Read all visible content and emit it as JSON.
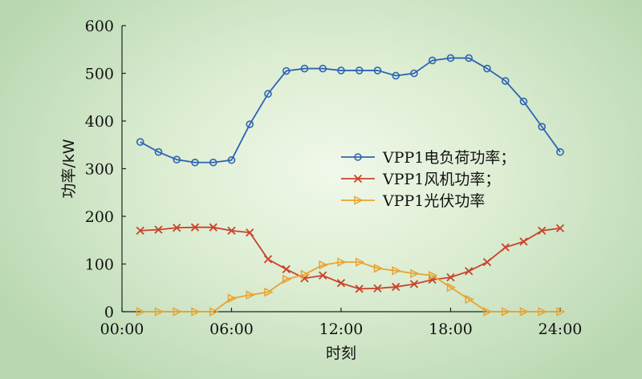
{
  "chart_data": {
    "type": "line",
    "xlabel": "时刻",
    "ylabel": "功率/kW",
    "x_ticks": [
      "00:00",
      "06:00",
      "12:00",
      "18:00",
      "24:00"
    ],
    "xlim": [
      0,
      24
    ],
    "ylim": [
      0,
      600
    ],
    "y_ticks": [
      0,
      100,
      200,
      300,
      400,
      500,
      600
    ],
    "grid": false,
    "legend_position": "center-right",
    "x": [
      1,
      2,
      3,
      4,
      5,
      6,
      7,
      8,
      9,
      10,
      11,
      12,
      13,
      14,
      15,
      16,
      17,
      18,
      19,
      20,
      21,
      22,
      23,
      24
    ],
    "series": [
      {
        "name": "VPP1电负荷功率；",
        "color": "#2f64b3",
        "marker": "circle",
        "values": [
          356,
          335,
          319,
          313,
          313,
          318,
          393,
          457,
          505,
          510,
          510,
          506,
          506,
          506,
          495,
          500,
          527,
          532,
          532,
          510,
          484,
          441,
          388,
          335
        ]
      },
      {
        "name": "VPP1风机功率；",
        "color": "#c8432c",
        "marker": "x",
        "values": [
          170,
          172,
          176,
          177,
          177,
          170,
          166,
          110,
          89,
          70,
          76,
          60,
          48,
          49,
          52,
          58,
          67,
          72,
          85,
          104,
          135,
          147,
          170,
          175
        ]
      },
      {
        "name": "VPP1光伏功率",
        "color": "#e8a432",
        "marker": "triangle-right",
        "values": [
          0,
          0,
          0,
          0,
          0,
          28,
          35,
          41,
          68,
          78,
          98,
          104,
          104,
          91,
          86,
          80,
          76,
          51,
          26,
          0,
          0,
          0,
          0,
          0
        ]
      }
    ]
  }
}
